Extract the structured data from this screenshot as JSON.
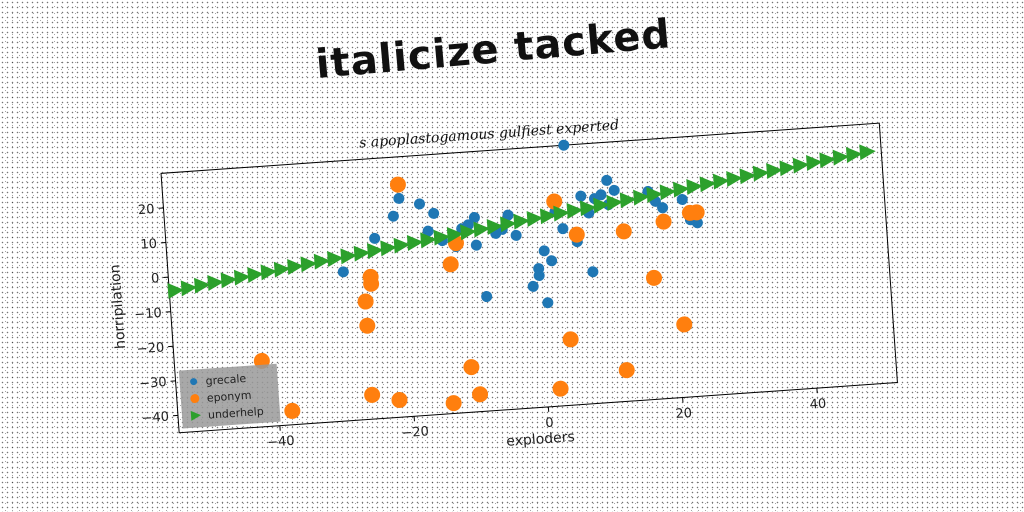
{
  "chart_data": {
    "type": "scatter",
    "title": "italicize tacked",
    "subtitle": "s apoplastogamous gulfiest experted",
    "xlabel": "exploders",
    "ylabel": "horripilation",
    "xlim": [
      -55,
      52
    ],
    "ylim": [
      -45,
      30
    ],
    "xticks": [
      -40,
      -20,
      0,
      20,
      40
    ],
    "yticks": [
      -40,
      -30,
      -20,
      -10,
      0,
      10,
      20
    ],
    "grid": false,
    "legend_position": "bottom-left",
    "series": [
      {
        "name": "grecale",
        "marker": "circle",
        "color": "#1f77b4",
        "x": [
          -29,
          -24,
          -21,
          -20,
          -17,
          -16,
          -15,
          -14,
          -12,
          -11,
          -10,
          -9,
          -9,
          -8,
          -6,
          -5,
          -4,
          -3,
          -1,
          0,
          0,
          1,
          1,
          2,
          3,
          4,
          5,
          6,
          7,
          8,
          8,
          9,
          10,
          11,
          11,
          12,
          17,
          18,
          19,
          22,
          23,
          24
        ],
        "y": [
          -2,
          7,
          13,
          18,
          16,
          8,
          13,
          5,
          3,
          8,
          9,
          11,
          3,
          -12,
          6,
          7,
          11,
          5,
          -10,
          -5,
          -7,
          -15,
          0,
          -3,
          11,
          6,
          30,
          2,
          15,
          -7,
          10,
          14,
          15,
          19,
          12,
          16,
          15,
          12,
          10,
          12,
          6,
          5
        ]
      },
      {
        "name": "eponym",
        "marker": "circle",
        "color": "#ff7f0e",
        "x": [
          -42,
          -38,
          -26,
          -26,
          -26,
          -25,
          -25,
          -22,
          -20,
          -14,
          -13,
          -12,
          -11,
          -10,
          2,
          3,
          4,
          6,
          12,
          13,
          17,
          19,
          21,
          23,
          24
        ],
        "y": [
          -26,
          -41,
          -38,
          -18,
          -11,
          -6,
          -4,
          -40,
          22,
          -42,
          -2,
          4,
          -32,
          -40,
          -40,
          14,
          -26,
          4,
          -36,
          4,
          -10,
          6,
          -24,
          8,
          8
        ]
      },
      {
        "name": "underhelp",
        "marker": "triangle-right",
        "color": "#2ca02c",
        "x": [
          -54,
          -52,
          -50,
          -48,
          -46,
          -44,
          -42,
          -40,
          -38,
          -36,
          -34,
          -32,
          -30,
          -28,
          -26,
          -24,
          -22,
          -20,
          -18,
          -16,
          -14,
          -12,
          -10,
          -8,
          -6,
          -4,
          -2,
          0,
          2,
          4,
          6,
          8,
          10,
          12,
          14,
          16,
          18,
          20,
          22,
          24,
          26,
          28,
          30,
          32,
          34,
          36,
          38,
          40,
          42,
          44,
          46,
          48,
          50
        ],
        "y": [
          -4.0,
          -3.5,
          -3.0,
          -2.5,
          -2.0,
          -1.5,
          -1.0,
          -0.5,
          0.0,
          0.5,
          1.0,
          1.5,
          2.0,
          2.5,
          3.0,
          3.5,
          4.0,
          4.5,
          5.0,
          5.5,
          6.0,
          6.5,
          7.0,
          7.5,
          8.0,
          8.5,
          9.0,
          9.5,
          10.0,
          10.5,
          11.0,
          11.5,
          12.0,
          12.5,
          13.0,
          13.5,
          14.0,
          14.5,
          15.0,
          15.5,
          16.0,
          16.5,
          17.0,
          17.5,
          18.0,
          18.5,
          19.0,
          19.5,
          20.0,
          20.5,
          21.0,
          21.5,
          22.0
        ]
      }
    ]
  }
}
